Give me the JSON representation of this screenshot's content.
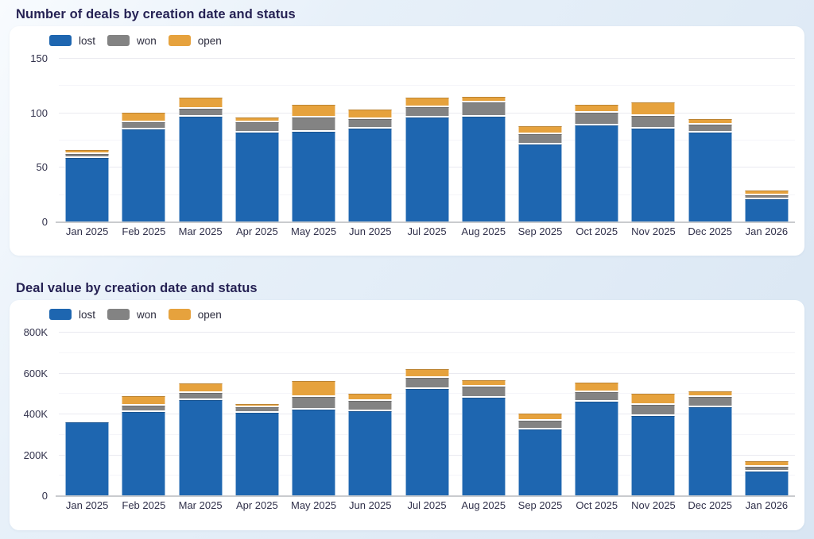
{
  "chart_data": [
    {
      "type": "bar",
      "stacked": true,
      "title": "Number of deals by creation date and status",
      "legend_position": "top-left",
      "grid": true,
      "categories": [
        "Jan 2025",
        "Feb 2025",
        "Mar 2025",
        "Apr 2025",
        "May 2025",
        "Jun 2025",
        "Jul 2025",
        "Aug 2025",
        "Sep 2025",
        "Oct 2025",
        "Nov 2025",
        "Dec 2025",
        "Jan 2026"
      ],
      "series": [
        {
          "name": "lost",
          "color": "#1e66b0",
          "values": [
            59,
            85,
            97,
            82,
            83,
            86,
            96,
            97,
            71,
            89,
            86,
            82,
            21
          ]
        },
        {
          "name": "won",
          "color": "#838383",
          "values": [
            2,
            5,
            6,
            8,
            12,
            7,
            8,
            12,
            8,
            10,
            10,
            6,
            2
          ]
        },
        {
          "name": "open",
          "color": "#e6a23d",
          "values": [
            2,
            7,
            9,
            3,
            10,
            7,
            7,
            4,
            6,
            6,
            11,
            4,
            3
          ]
        }
      ],
      "xlabel": "",
      "ylabel": "",
      "ylim": [
        0,
        150
      ],
      "y_ticks": [
        {
          "label": "0",
          "value": 0
        },
        {
          "label": "50",
          "value": 50
        },
        {
          "label": "100",
          "value": 100
        },
        {
          "label": "150",
          "value": 150
        }
      ],
      "y_minor_ticks": [
        25,
        75,
        125
      ]
    },
    {
      "type": "bar",
      "stacked": true,
      "title": "Deal value by creation date and status",
      "legend_position": "top-left",
      "grid": true,
      "categories": [
        "Jan 2025",
        "Feb 2025",
        "Mar 2025",
        "Apr 2025",
        "May 2025",
        "Jun 2025",
        "Jul 2025",
        "Aug 2025",
        "Sep 2025",
        "Oct 2025",
        "Nov 2025",
        "Dec 2025",
        "Jan 2026"
      ],
      "value_unit": "K",
      "series": [
        {
          "name": "lost",
          "color": "#1e66b0",
          "values": [
            360,
            410,
            470,
            408,
            424,
            417,
            525,
            481,
            328,
            463,
            392,
            434,
            122
          ]
        },
        {
          "name": "won",
          "color": "#838383",
          "values": [
            0,
            25,
            29,
            18,
            55,
            43,
            47,
            47,
            36,
            39,
            45,
            44,
            16
          ]
        },
        {
          "name": "open",
          "color": "#e6a23d",
          "values": [
            0,
            37,
            39,
            9,
            70,
            29,
            34,
            23,
            26,
            37,
            47,
            21,
            18
          ]
        }
      ],
      "xlabel": "",
      "ylabel": "",
      "ylim": [
        0,
        800
      ],
      "y_ticks": [
        {
          "label": "0",
          "value": 0
        },
        {
          "label": "200K",
          "value": 200
        },
        {
          "label": "400K",
          "value": 400
        },
        {
          "label": "600K",
          "value": 600
        },
        {
          "label": "800K",
          "value": 800
        }
      ],
      "y_minor_ticks": [
        100,
        300,
        500,
        700
      ]
    }
  ]
}
